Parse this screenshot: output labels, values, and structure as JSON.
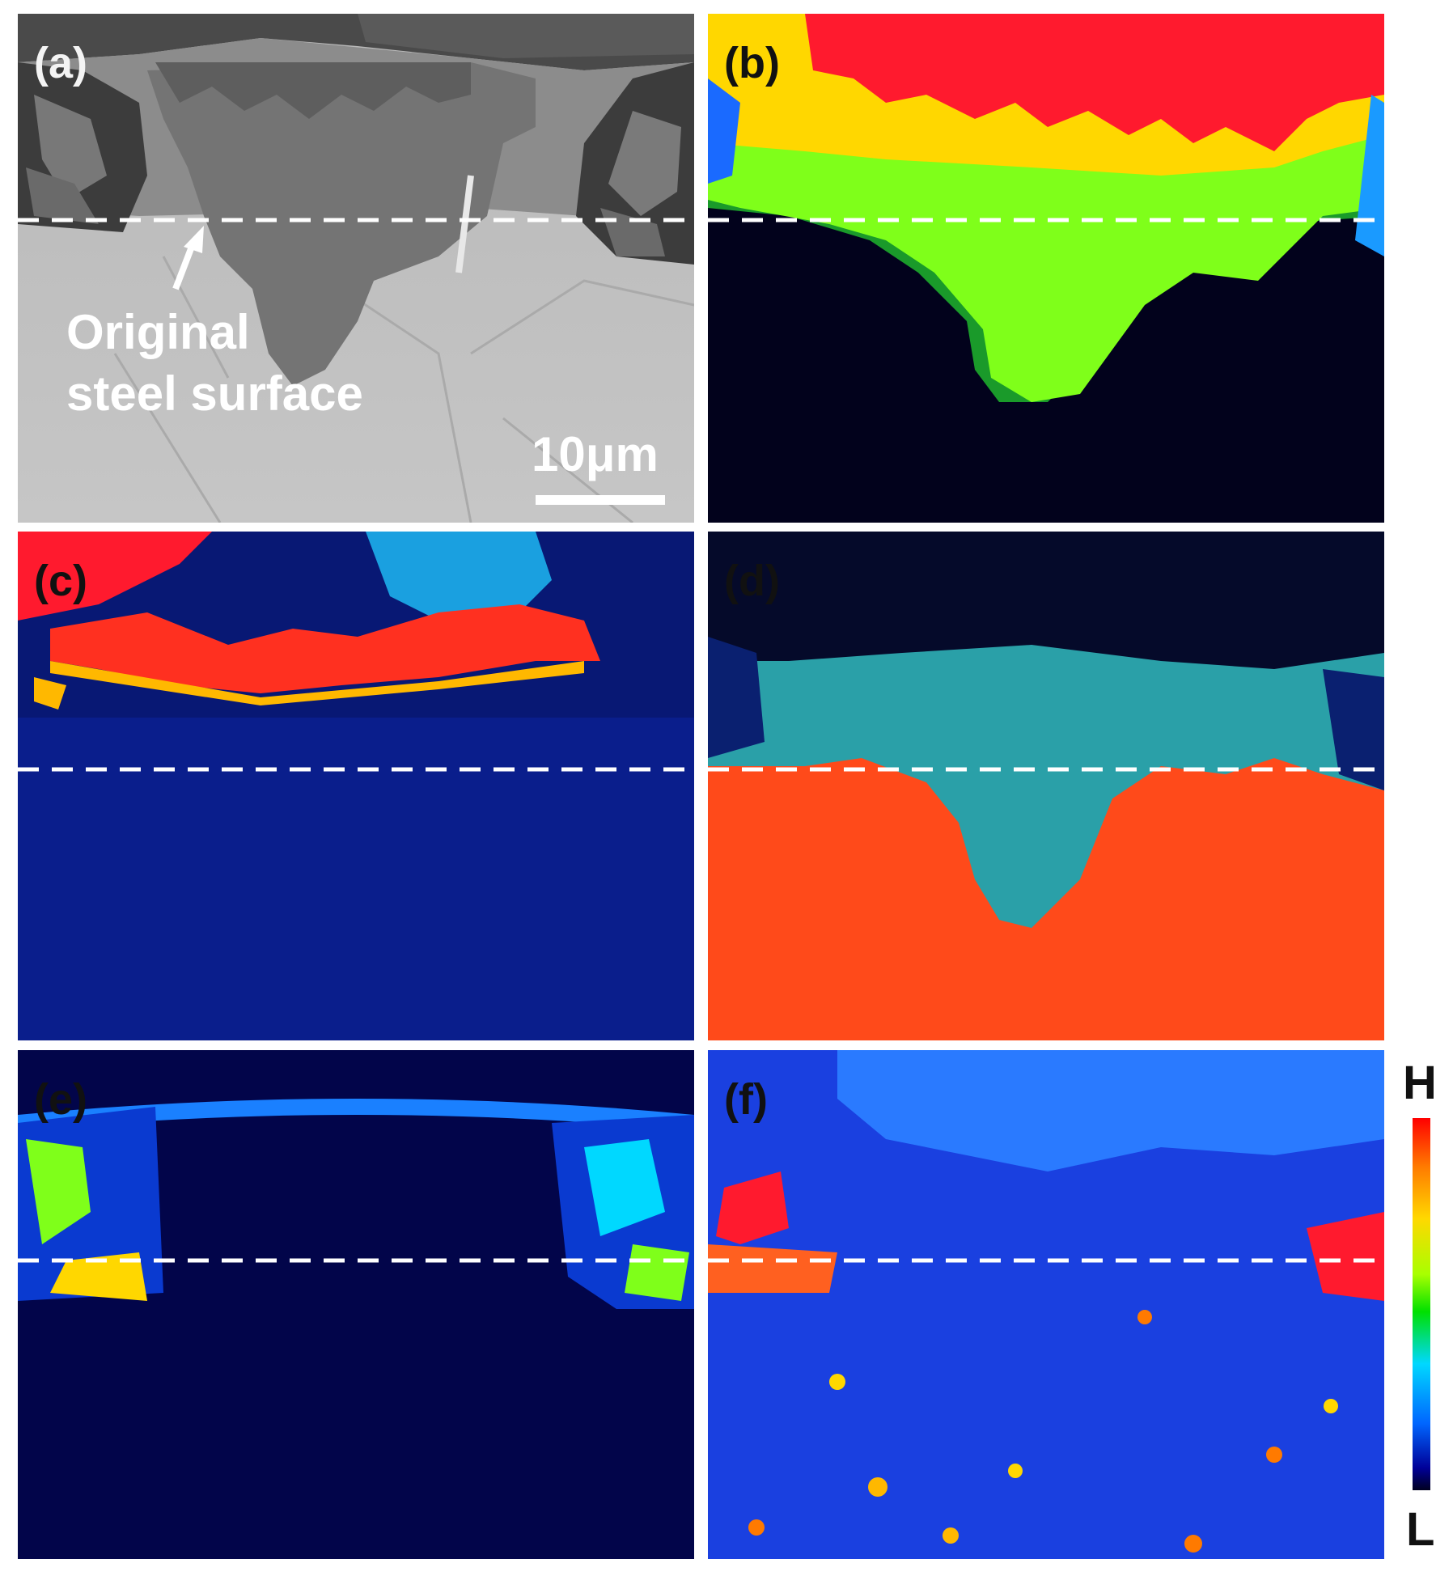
{
  "panels": {
    "a": {
      "label": "(a)",
      "annotation_line1": "Original",
      "annotation_line2": "steel surface",
      "scale_text": "10μm"
    },
    "b": {
      "label": "(b)"
    },
    "c": {
      "label": "(c)"
    },
    "d": {
      "label": "(d)"
    },
    "e": {
      "label": "(e)"
    },
    "f": {
      "label": "(f)"
    }
  },
  "colorbar": {
    "high": "H",
    "low": "L"
  },
  "colors": {
    "red": "#ff1a2e",
    "yellow": "#ffd700",
    "green": "#7fff1a",
    "deep_navy": "#02021c",
    "blue_noise": "#1030b8",
    "orange_red": "#ff4a1a"
  }
}
